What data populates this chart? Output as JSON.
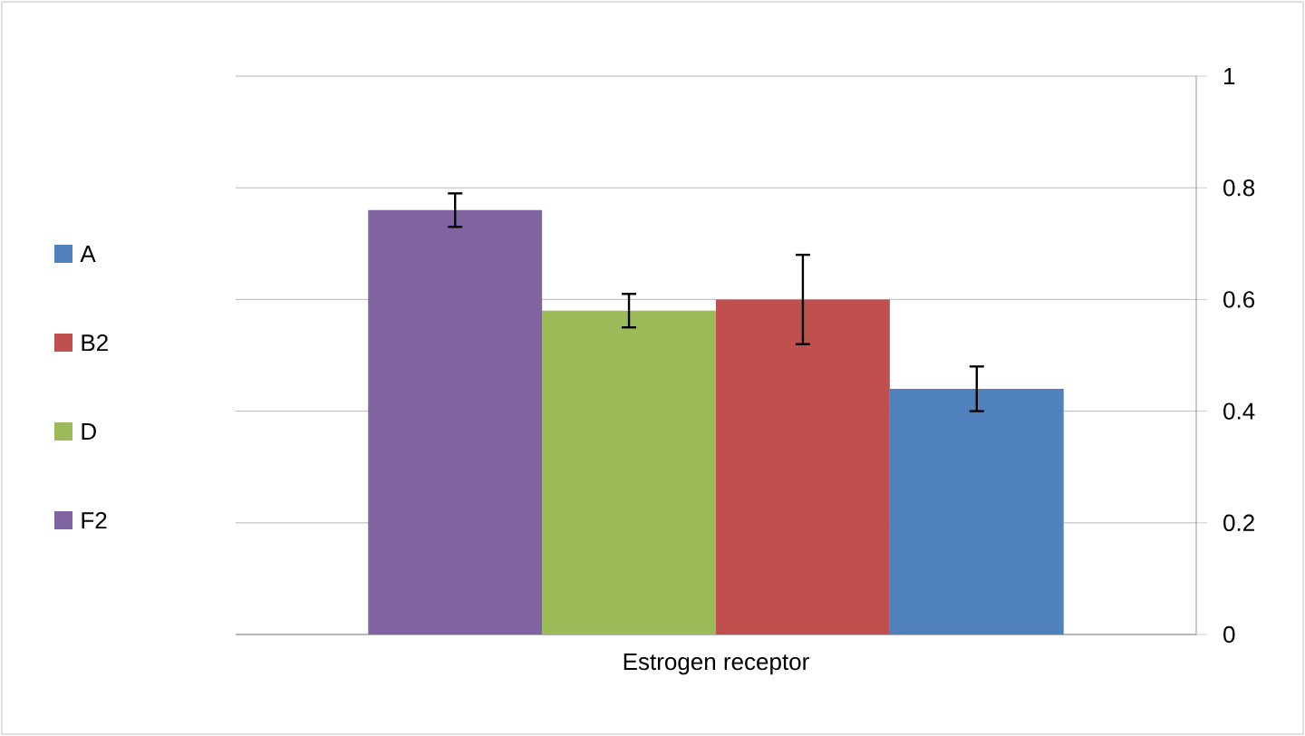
{
  "chart_data": {
    "type": "bar",
    "categories": [
      "Estrogen receptor"
    ],
    "series": [
      {
        "name": "A",
        "color": "#4f81bd",
        "values": [
          0.44
        ],
        "errors": [
          0.04
        ]
      },
      {
        "name": "B2",
        "color": "#c0504d",
        "values": [
          0.6
        ],
        "errors": [
          0.08
        ]
      },
      {
        "name": "D",
        "color": "#9bbb59",
        "values": [
          0.58
        ],
        "errors": [
          0.03
        ]
      },
      {
        "name": "F2",
        "color": "#8064a2",
        "values": [
          0.76
        ],
        "errors": [
          0.03
        ]
      }
    ],
    "ylim": [
      0,
      1
    ],
    "yticks": [
      0,
      0.2,
      0.4,
      0.6,
      0.8,
      1
    ],
    "grid": "y",
    "legend": "left"
  }
}
